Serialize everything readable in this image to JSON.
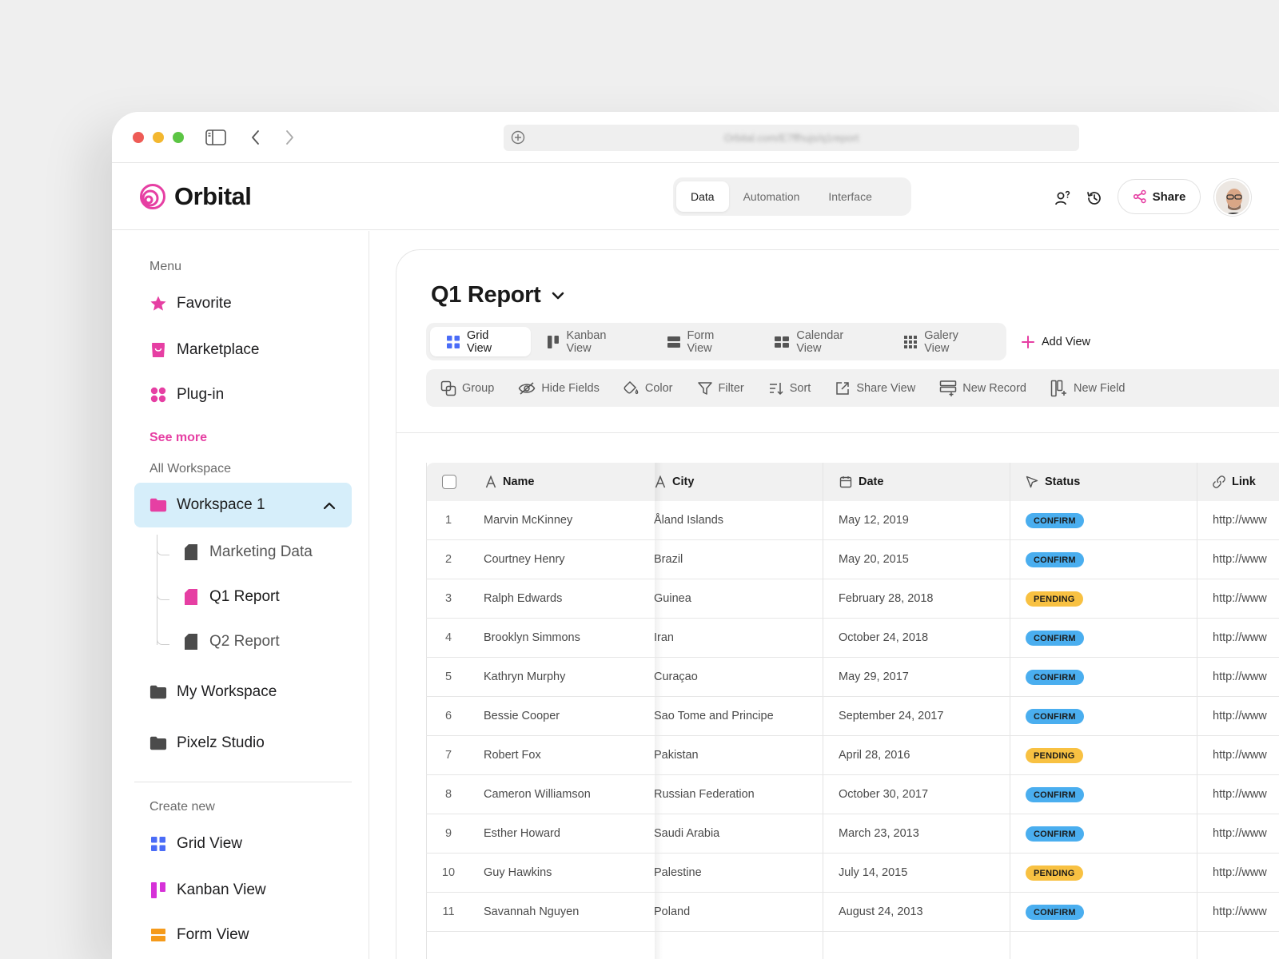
{
  "browser": {
    "url": "Orbital.com/E7ffhujs/q1report"
  },
  "app": {
    "name": "Orbital",
    "tabs": [
      {
        "label": "Data"
      },
      {
        "label": "Automation"
      },
      {
        "label": "Interface"
      }
    ],
    "share_label": "Share"
  },
  "sidebar": {
    "menu_label": "Menu",
    "menu_items": [
      {
        "label": "Favorite",
        "icon": "star-icon"
      },
      {
        "label": "Marketplace",
        "icon": "shopping-bag-icon"
      },
      {
        "label": "Plug-in",
        "icon": "plugin-icon"
      }
    ],
    "see_more": "See more",
    "workspace_label": "All Workspace",
    "active_workspace": "Workspace 1",
    "workspace_children": [
      {
        "label": "Marketing Data"
      },
      {
        "label": "Q1 Report"
      },
      {
        "label": "Q2 Report"
      }
    ],
    "other_workspaces": [
      {
        "label": "My Workspace"
      },
      {
        "label": "Pixelz Studio"
      }
    ],
    "create_label": "Create new",
    "create_items": [
      {
        "label": "Grid View"
      },
      {
        "label": "Kanban View"
      },
      {
        "label": "Form View"
      }
    ]
  },
  "main": {
    "title": "Q1 Report",
    "views": [
      {
        "label": "Grid View"
      },
      {
        "label": "Kanban View"
      },
      {
        "label": "Form View"
      },
      {
        "label": "Calendar View"
      },
      {
        "label": "Galery View"
      }
    ],
    "add_view": "Add View",
    "toolbar": [
      {
        "label": "Group"
      },
      {
        "label": "Hide Fields"
      },
      {
        "label": "Color"
      },
      {
        "label": "Filter"
      },
      {
        "label": "Sort"
      },
      {
        "label": "Share View"
      },
      {
        "label": "New Record"
      },
      {
        "label": "New Field"
      }
    ]
  },
  "table": {
    "columns": {
      "name": "Name",
      "city": "City",
      "date": "Date",
      "status": "Status",
      "link": "Link"
    },
    "rows": [
      {
        "num": "1",
        "name": "Marvin McKinney",
        "city": "Åland Islands",
        "date": "May 12, 2019",
        "status": "CONFIRM",
        "link": "http://www"
      },
      {
        "num": "2",
        "name": "Courtney Henry",
        "city": "Brazil",
        "date": "May 20, 2015",
        "status": "CONFIRM",
        "link": "http://www"
      },
      {
        "num": "3",
        "name": "Ralph Edwards",
        "city": "Guinea",
        "date": "February 28, 2018",
        "status": "PENDING",
        "link": "http://www"
      },
      {
        "num": "4",
        "name": "Brooklyn Simmons",
        "city": "Iran",
        "date": "October 24, 2018",
        "status": "CONFIRM",
        "link": "http://www"
      },
      {
        "num": "5",
        "name": "Kathryn Murphy",
        "city": "Curaçao",
        "date": "May 29, 2017",
        "status": "CONFIRM",
        "link": "http://www"
      },
      {
        "num": "6",
        "name": "Bessie Cooper",
        "city": "Sao Tome and Principe",
        "date": "September 24, 2017",
        "status": "CONFIRM",
        "link": "http://www"
      },
      {
        "num": "7",
        "name": "Robert Fox",
        "city": "Pakistan",
        "date": "April 28, 2016",
        "status": "PENDING",
        "link": "http://www"
      },
      {
        "num": "8",
        "name": "Cameron Williamson",
        "city": "Russian Federation",
        "date": "October 30, 2017",
        "status": "CONFIRM",
        "link": "http://www"
      },
      {
        "num": "9",
        "name": "Esther Howard",
        "city": "Saudi Arabia",
        "date": "March 23, 2013",
        "status": "CONFIRM",
        "link": "http://www"
      },
      {
        "num": "10",
        "name": "Guy Hawkins",
        "city": "Palestine",
        "date": "July 14, 2015",
        "status": "PENDING",
        "link": "http://www"
      },
      {
        "num": "11",
        "name": "Savannah Nguyen",
        "city": "Poland",
        "date": "August 24, 2013",
        "status": "CONFIRM",
        "link": "http://www"
      }
    ]
  },
  "colors": {
    "accent_pink": "#e63fa3",
    "confirm": "#4aaeef",
    "pending": "#f8c142",
    "active_workspace_bg": "#d6eefa"
  }
}
